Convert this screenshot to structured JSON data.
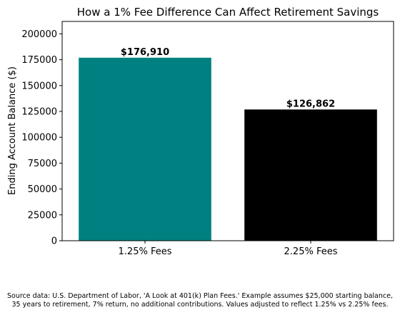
{
  "chart_data": {
    "type": "bar",
    "title": "How a 1% Fee Difference Can Affect Retirement Savings",
    "xlabel": "",
    "ylabel": "Ending Account Balance ($)",
    "categories": [
      "1.25% Fees",
      "2.25% Fees"
    ],
    "values": [
      176910,
      126862
    ],
    "value_labels": [
      "$176,910",
      "$126,862"
    ],
    "colors": [
      "#008080",
      "#000000"
    ],
    "ylim": [
      0,
      212000
    ],
    "yticks": [
      0,
      25000,
      50000,
      75000,
      100000,
      125000,
      150000,
      175000,
      200000
    ],
    "grid": false,
    "legend": "none"
  },
  "footnote": {
    "line1": "Source data: U.S. Department of Labor, 'A Look at 401(k) Plan Fees.' Example assumes $25,000 starting balance,",
    "line2": "35 years to retirement, 7% return, no additional contributions. Values adjusted to reflect 1.25% vs 2.25% fees."
  }
}
